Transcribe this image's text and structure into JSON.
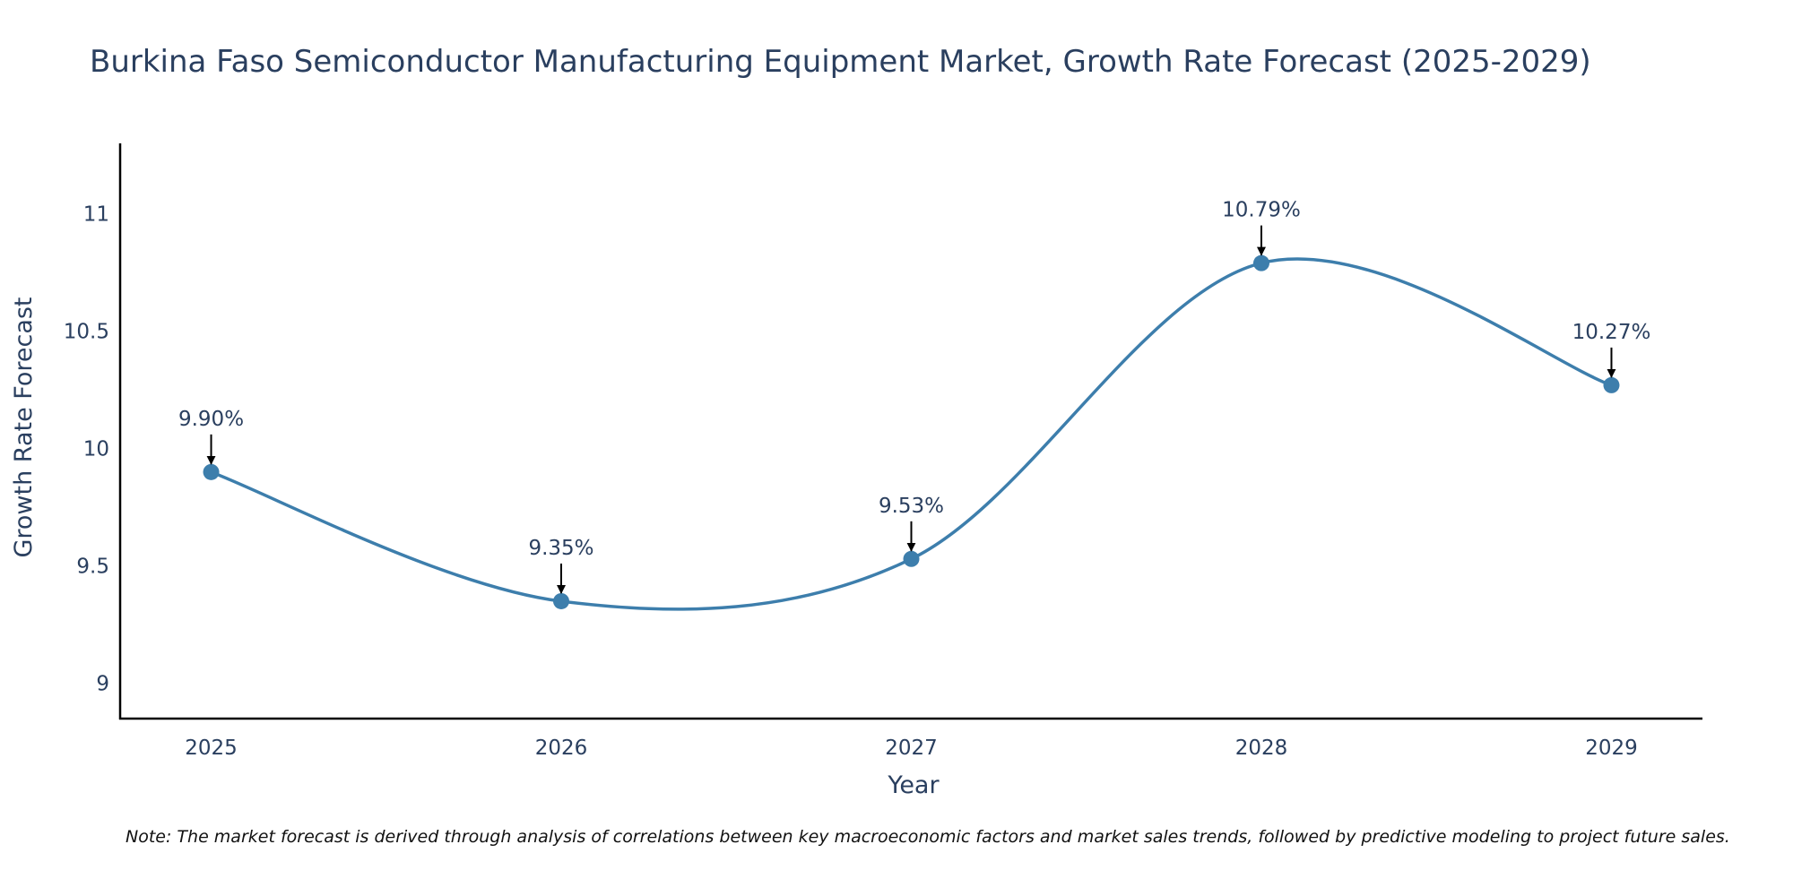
{
  "chart_data": {
    "type": "line",
    "title": "Burkina Faso Semiconductor Manufacturing Equipment Market, Growth Rate Forecast (2025-2029)",
    "xlabel": "Year",
    "ylabel": "Growth Rate Forecast",
    "categories": [
      "2025",
      "2026",
      "2027",
      "2028",
      "2029"
    ],
    "values": [
      9.9,
      9.35,
      9.53,
      10.79,
      10.27
    ],
    "data_labels": [
      "9.90%",
      "9.35%",
      "9.53%",
      "10.79%",
      "10.27%"
    ],
    "y_ticks": [
      9,
      9.5,
      10,
      10.5,
      11
    ],
    "y_tick_labels": [
      "9",
      "9.5",
      "10",
      "10.5",
      "11"
    ],
    "ylim": [
      8.85,
      11.3
    ],
    "x_range": [
      -0.26,
      4.26
    ],
    "line_shape": "spline",
    "grid": false,
    "colors": {
      "line": "#3d7eac",
      "marker": "#3d7eac",
      "text": "#2a3f5f",
      "axis": "#000000",
      "arrow": "#000000"
    }
  },
  "footnote": "Note: The market forecast is derived through analysis of correlations between key macroeconomic factors and market sales trends, followed by predictive modeling to project future sales."
}
